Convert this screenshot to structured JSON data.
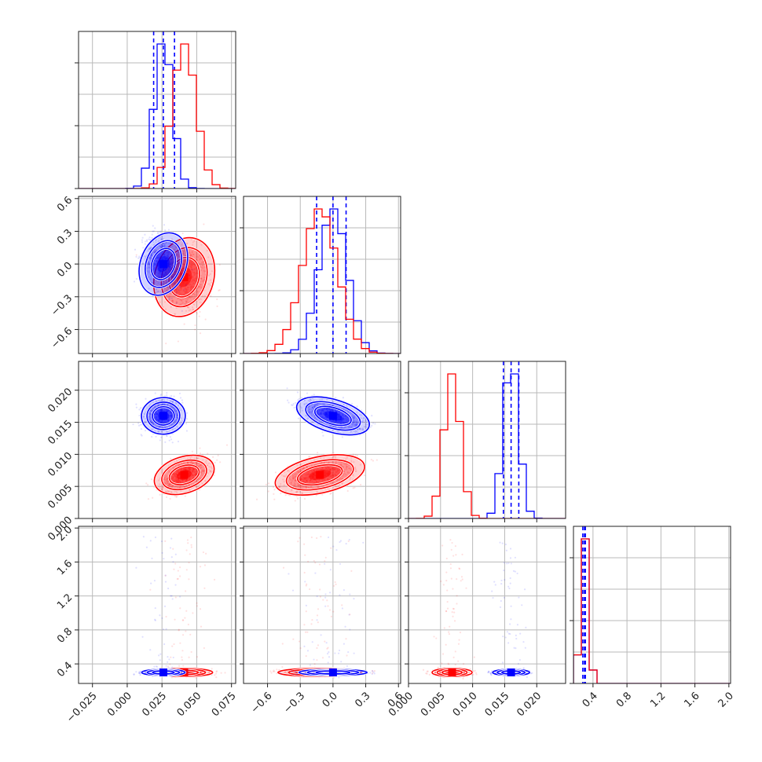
{
  "colors": {
    "series_a": "#0000ff",
    "series_b": "#ff0000",
    "axis": "#222222",
    "grid": "#b9b9b9"
  },
  "chart_data": {
    "type": "corner",
    "grid": true,
    "n_params": 4,
    "series": [
      {
        "name": "",
        "color": "#0000ff",
        "mean": [
          0.026,
          0.0,
          0.016,
          0.3
        ],
        "sd": [
          0.0065,
          0.13,
          0.0012,
          0.015
        ],
        "quantiles": [
          [
            0.019,
            0.026,
            0.034
          ],
          [
            -0.15,
            0.0,
            0.12
          ],
          [
            0.0148,
            0.016,
            0.0172
          ],
          [
            0.28,
            0.3,
            0.31
          ]
        ]
      },
      {
        "name": "",
        "color": "#ff0000",
        "mean": [
          0.041,
          -0.12,
          0.0068,
          0.3
        ],
        "sd": [
          0.0085,
          0.16,
          0.0013,
          0.02
        ],
        "quantiles": []
      }
    ],
    "correlations": [
      {
        "i": 1,
        "j": 0,
        "series_a": -0.25,
        "series_b": -0.2
      },
      {
        "i": 2,
        "j": 0,
        "series_a": 0.05,
        "series_b": 0.45
      },
      {
        "i": 2,
        "j": 1,
        "series_a": -0.55,
        "series_b": 0.45
      },
      {
        "i": 3,
        "j": 0,
        "series_a": 0.0,
        "series_b": 0.0
      },
      {
        "i": 3,
        "j": 1,
        "series_a": 0.0,
        "series_b": 0.0
      },
      {
        "i": 3,
        "j": 2,
        "series_a": 0.0,
        "series_b": 0.0
      }
    ],
    "params": [
      {
        "range": [
          -0.035,
          0.078
        ],
        "ticks": [
          -0.025,
          0.0,
          0.025,
          0.05,
          0.075
        ],
        "tick_labels": [
          "−0.025",
          "0.000",
          "0.025",
          "0.050",
          "0.075"
        ]
      },
      {
        "range": [
          -0.82,
          0.62
        ],
        "ticks": [
          -0.6,
          -0.3,
          0.0,
          0.3,
          0.6
        ],
        "tick_labels": [
          "−0.6",
          "−0.3",
          "0.0",
          "0.3",
          "0.6"
        ]
      },
      {
        "range": [
          0.0,
          0.0245
        ],
        "ticks": [
          0.0,
          0.005,
          0.01,
          0.015,
          0.02
        ],
        "tick_labels": [
          "0.000",
          "0.005",
          "0.010",
          "0.015",
          "0.020"
        ]
      },
      {
        "range": [
          0.17,
          2.02
        ],
        "ticks": [
          0.4,
          0.8,
          1.2,
          1.6,
          2.0
        ],
        "tick_labels": [
          "0.4",
          "0.8",
          "1.2",
          "1.6",
          "2.0"
        ]
      }
    ]
  }
}
